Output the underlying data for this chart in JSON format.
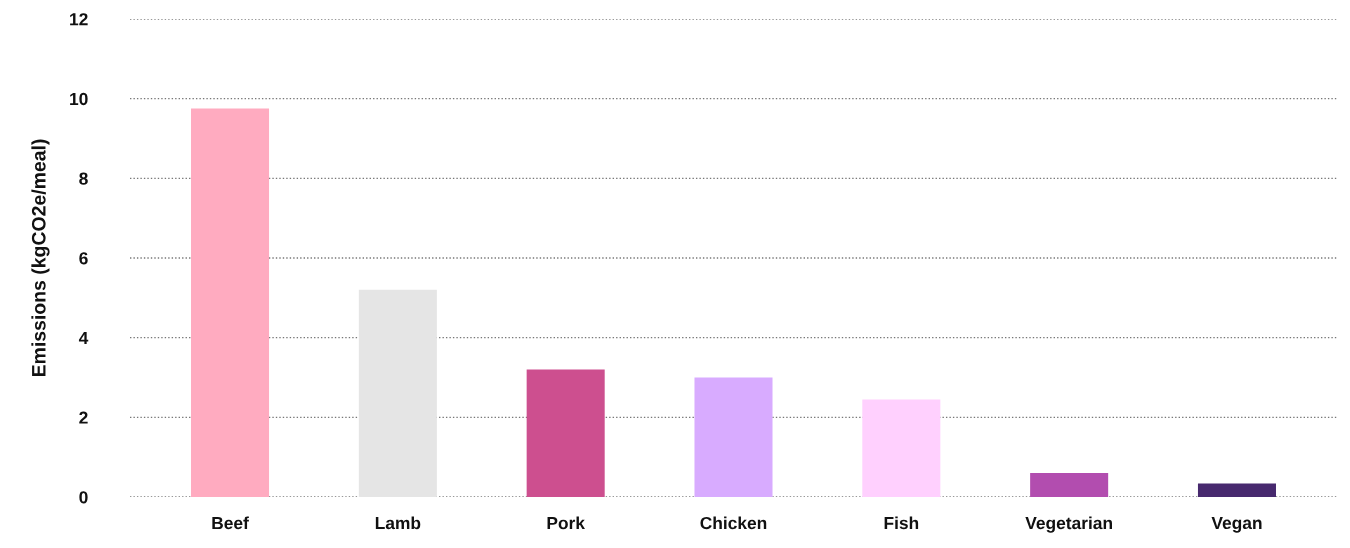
{
  "chart_data": {
    "type": "bar",
    "ylabel": "Emissions (kgCO2e/meal)",
    "categories": [
      "Beef",
      "Lamb",
      "Pork",
      "Chicken",
      "Fish",
      "Vegetarian",
      "Vegan"
    ],
    "values": [
      9.75,
      5.2,
      3.2,
      3.0,
      2.45,
      0.6,
      0.34
    ],
    "colors": [
      "#ffabc0",
      "#e5e5e5",
      "#cd4f8f",
      "#d8abff",
      "#ffd0fe",
      "#b24daf",
      "#47296e"
    ],
    "ylim": [
      0,
      12
    ],
    "yticks": [
      0,
      2,
      4,
      6,
      8,
      10,
      12
    ],
    "grid": "y"
  }
}
